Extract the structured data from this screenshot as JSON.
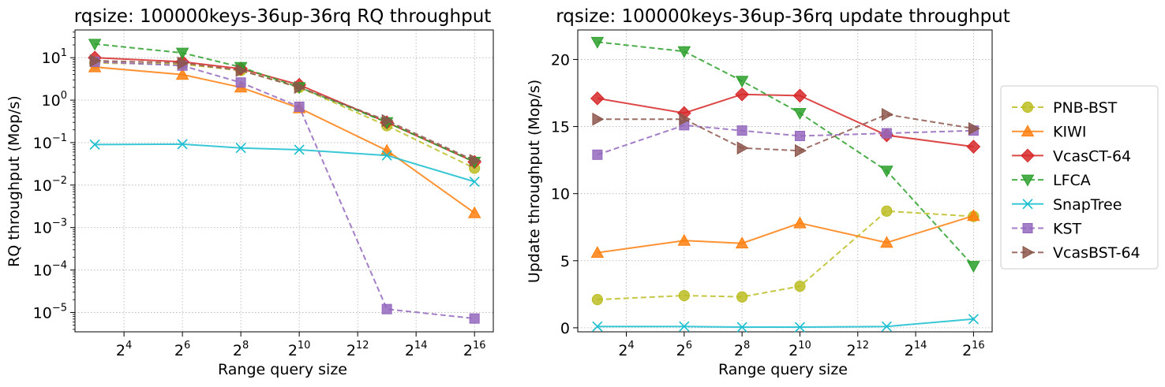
{
  "chart_data": [
    {
      "type": "line",
      "title": "rqsize: 100000keys-36up-36rq RQ throughput",
      "xlabel": "Range query size",
      "ylabel": "RQ throughput (Mop/s)",
      "xscale": "log2",
      "yscale": "log10",
      "x": [
        8,
        64,
        256,
        1024,
        8192,
        65536
      ],
      "xlim": [
        5,
        102400
      ],
      "ylim": [
        3.5e-06,
        45
      ],
      "xticks": [
        {
          "base": "2",
          "exp": "4",
          "value": 16
        },
        {
          "base": "2",
          "exp": "6",
          "value": 64
        },
        {
          "base": "2",
          "exp": "8",
          "value": 256
        },
        {
          "base": "2",
          "exp": "10",
          "value": 1024
        },
        {
          "base": "2",
          "exp": "12",
          "value": 4096
        },
        {
          "base": "2",
          "exp": "14",
          "value": 16384
        },
        {
          "base": "2",
          "exp": "16",
          "value": 65536
        }
      ],
      "yticks": [
        {
          "base": "10",
          "exp": "1",
          "value": 10
        },
        {
          "base": "10",
          "exp": "0",
          "value": 1
        },
        {
          "base": "10",
          "exp": "−1",
          "value": 0.1
        },
        {
          "base": "10",
          "exp": "−2",
          "value": 0.01
        },
        {
          "base": "10",
          "exp": "−3",
          "value": 0.001
        },
        {
          "base": "10",
          "exp": "−4",
          "value": 0.0001
        },
        {
          "base": "10",
          "exp": "−5",
          "value": 1e-05
        }
      ],
      "grid": true,
      "series": [
        {
          "name": "PNB-BST",
          "values": [
            7.5,
            7.0,
            5.0,
            2.0,
            0.25,
            0.025
          ]
        },
        {
          "name": "KIWI",
          "values": [
            6.0,
            4.0,
            2.0,
            0.65,
            0.065,
            0.0022
          ]
        },
        {
          "name": "VcasCT-64",
          "values": [
            10.0,
            8.0,
            5.5,
            2.3,
            0.3,
            0.035
          ]
        },
        {
          "name": "LFCA",
          "values": [
            21.0,
            13.0,
            6.0,
            2.0,
            0.3,
            0.035
          ]
        },
        {
          "name": "SnapTree",
          "values": [
            0.09,
            0.092,
            0.075,
            0.068,
            0.05,
            0.012
          ]
        },
        {
          "name": "KST",
          "values": [
            8.0,
            6.5,
            2.6,
            0.7,
            1.2e-05,
            7.2e-06
          ]
        },
        {
          "name": "VcasBST-64",
          "values": [
            8.5,
            7.5,
            5.0,
            2.0,
            0.33,
            0.038
          ]
        }
      ]
    },
    {
      "type": "line",
      "title": "rqsize: 100000keys-36up-36rq update throughput",
      "xlabel": "Range query size",
      "ylabel": "Update throughput (Mop/s)",
      "xscale": "log2",
      "yscale": "linear",
      "x": [
        8,
        64,
        256,
        1024,
        8192,
        65536
      ],
      "xlim": [
        5,
        102400
      ],
      "ylim": [
        -0.3,
        22.2
      ],
      "xticks": [
        {
          "base": "2",
          "exp": "4",
          "value": 16
        },
        {
          "base": "2",
          "exp": "6",
          "value": 64
        },
        {
          "base": "2",
          "exp": "8",
          "value": 256
        },
        {
          "base": "2",
          "exp": "10",
          "value": 1024
        },
        {
          "base": "2",
          "exp": "12",
          "value": 4096
        },
        {
          "base": "2",
          "exp": "14",
          "value": 16384
        },
        {
          "base": "2",
          "exp": "16",
          "value": 65536
        }
      ],
      "yticks": [
        {
          "label": "0",
          "value": 0
        },
        {
          "label": "5",
          "value": 5
        },
        {
          "label": "10",
          "value": 10
        },
        {
          "label": "15",
          "value": 15
        },
        {
          "label": "20",
          "value": 20
        }
      ],
      "grid": true,
      "legend": "right",
      "series": [
        {
          "name": "PNB-BST",
          "values": [
            2.1,
            2.4,
            2.3,
            3.1,
            8.7,
            8.3
          ]
        },
        {
          "name": "KIWI",
          "values": [
            5.6,
            6.5,
            6.3,
            7.8,
            6.35,
            8.35
          ]
        },
        {
          "name": "VcasCT-64",
          "values": [
            17.1,
            16.0,
            17.4,
            17.3,
            14.35,
            13.5
          ]
        },
        {
          "name": "LFCA",
          "values": [
            21.3,
            20.6,
            18.4,
            16.0,
            11.7,
            4.6
          ]
        },
        {
          "name": "SnapTree",
          "values": [
            0.1,
            0.1,
            0.05,
            0.05,
            0.1,
            0.65
          ]
        },
        {
          "name": "KST",
          "values": [
            12.9,
            15.1,
            14.7,
            14.3,
            14.5,
            14.7
          ]
        },
        {
          "name": "VcasBST-64",
          "values": [
            15.55,
            15.55,
            13.4,
            13.2,
            15.9,
            14.85
          ]
        }
      ]
    }
  ],
  "styles": [
    {
      "name": "PNB-BST",
      "color": "#bcbd22",
      "marker": "circle",
      "dash": true
    },
    {
      "name": "KIWI",
      "color": "#ff7f0e",
      "marker": "triangle-up",
      "dash": false
    },
    {
      "name": "VcasCT-64",
      "color": "#d62728",
      "marker": "diamond",
      "dash": false
    },
    {
      "name": "LFCA",
      "color": "#2ca02c",
      "marker": "triangle-down",
      "dash": true
    },
    {
      "name": "SnapTree",
      "color": "#17becf",
      "marker": "x",
      "dash": false
    },
    {
      "name": "KST",
      "color": "#9467bd",
      "marker": "square",
      "dash": true
    },
    {
      "name": "VcasBST-64",
      "color": "#8c564b",
      "marker": "triangle-right",
      "dash": true
    }
  ]
}
